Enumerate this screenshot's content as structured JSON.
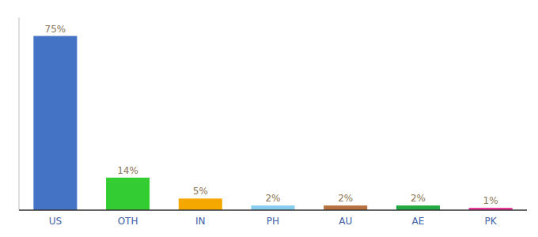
{
  "chart_data": {
    "type": "bar",
    "categories": [
      "US",
      "OTH",
      "IN",
      "PH",
      "AU",
      "AE",
      "PK"
    ],
    "values": [
      75,
      14,
      5,
      2,
      2,
      2,
      1
    ],
    "value_labels": [
      "75%",
      "14%",
      "5%",
      "2%",
      "2%",
      "2%",
      "1%"
    ],
    "colors": [
      "#4472C4",
      "#33CC33",
      "#F5A800",
      "#88CCEE",
      "#B87040",
      "#22AA44",
      "#EE3399"
    ],
    "ylim": [
      0,
      83
    ],
    "data_labels": true,
    "tick_labels": "x",
    "grid": false
  }
}
